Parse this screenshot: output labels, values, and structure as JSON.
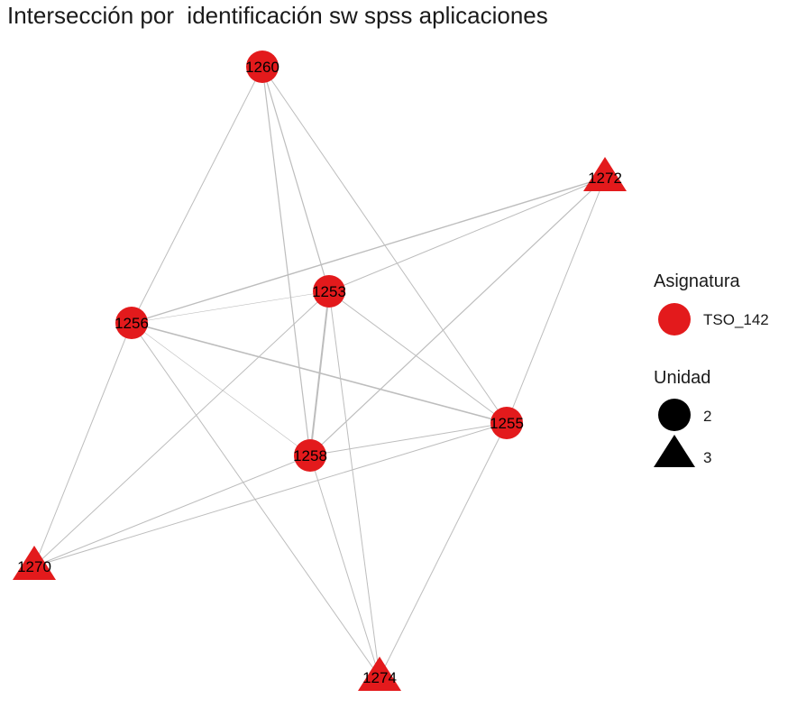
{
  "title": "Intersección por  identificación sw spss aplicaciones",
  "colors": {
    "node": "#e31a1c",
    "edge": "#bdbdbd",
    "legend_shape": "#000000"
  },
  "nodes": [
    {
      "id": "1260",
      "label": "1260",
      "unidad": "2",
      "asignatura": "TSO_142"
    },
    {
      "id": "1272",
      "label": "1272",
      "unidad": "3",
      "asignatura": "TSO_142"
    },
    {
      "id": "1253",
      "label": "1253",
      "unidad": "2",
      "asignatura": "TSO_142"
    },
    {
      "id": "1256",
      "label": "1256",
      "unidad": "2",
      "asignatura": "TSO_142"
    },
    {
      "id": "1255",
      "label": "1255",
      "unidad": "2",
      "asignatura": "TSO_142"
    },
    {
      "id": "1258",
      "label": "1258",
      "unidad": "2",
      "asignatura": "TSO_142"
    },
    {
      "id": "1270",
      "label": "1270",
      "unidad": "3",
      "asignatura": "TSO_142"
    },
    {
      "id": "1274",
      "label": "1274",
      "unidad": "3",
      "asignatura": "TSO_142"
    }
  ],
  "edges": [
    {
      "source": "1260",
      "target": "1256",
      "weight": 1
    },
    {
      "source": "1260",
      "target": "1253",
      "weight": 1.2
    },
    {
      "source": "1260",
      "target": "1258",
      "weight": 1.2
    },
    {
      "source": "1260",
      "target": "1255",
      "weight": 1
    },
    {
      "source": "1272",
      "target": "1256",
      "weight": 1.4
    },
    {
      "source": "1272",
      "target": "1253",
      "weight": 1
    },
    {
      "source": "1272",
      "target": "1258",
      "weight": 1.2
    },
    {
      "source": "1272",
      "target": "1255",
      "weight": 1
    },
    {
      "source": "1253",
      "target": "1256",
      "weight": 0.6
    },
    {
      "source": "1253",
      "target": "1258",
      "weight": 2
    },
    {
      "source": "1253",
      "target": "1255",
      "weight": 1
    },
    {
      "source": "1253",
      "target": "1270",
      "weight": 1
    },
    {
      "source": "1253",
      "target": "1274",
      "weight": 1
    },
    {
      "source": "1256",
      "target": "1255",
      "weight": 1.6
    },
    {
      "source": "1256",
      "target": "1258",
      "weight": 0.6
    },
    {
      "source": "1256",
      "target": "1270",
      "weight": 1
    },
    {
      "source": "1256",
      "target": "1274",
      "weight": 1
    },
    {
      "source": "1258",
      "target": "1255",
      "weight": 1
    },
    {
      "source": "1258",
      "target": "1270",
      "weight": 1
    },
    {
      "source": "1258",
      "target": "1274",
      "weight": 1
    },
    {
      "source": "1255",
      "target": "1270",
      "weight": 1
    },
    {
      "source": "1255",
      "target": "1274",
      "weight": 1
    }
  ],
  "legend": {
    "asignatura": {
      "title": "Asignatura",
      "items": [
        {
          "label": "TSO_142",
          "shape": "circle"
        }
      ]
    },
    "unidad": {
      "title": "Unidad",
      "items": [
        {
          "label": "2",
          "shape": "circle"
        },
        {
          "label": "3",
          "shape": "triangle"
        }
      ]
    }
  }
}
